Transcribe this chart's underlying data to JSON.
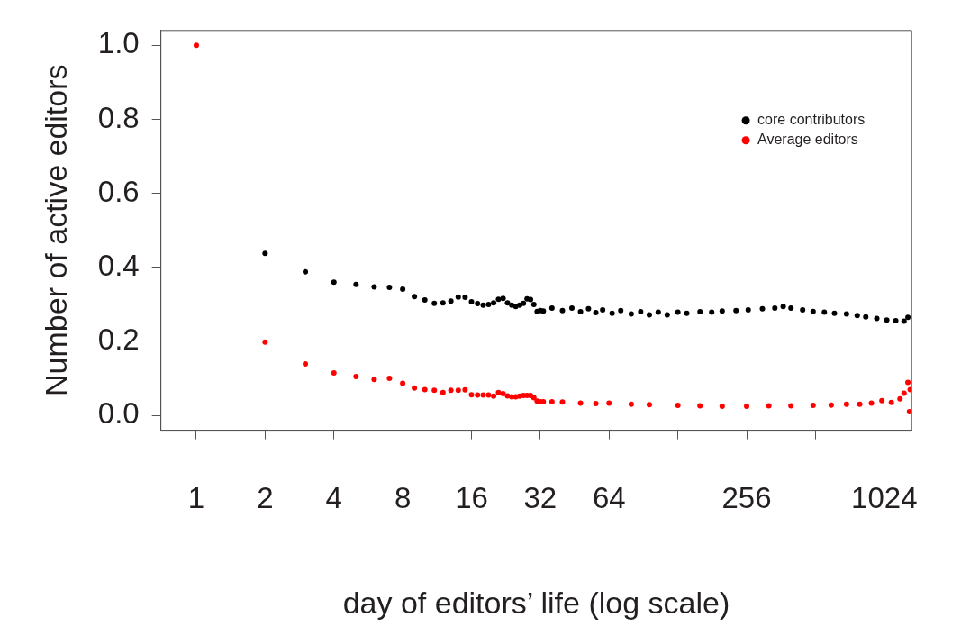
{
  "chart_data": {
    "type": "scatter",
    "xlabel": "day of editors’ life (log scale)",
    "ylabel": "Number of active editors",
    "log": "x",
    "xlim": [
      0.7,
      1350
    ],
    "ylim": [
      -0.04,
      1.04
    ],
    "xticks": [
      1,
      2,
      4,
      8,
      16,
      32,
      64,
      {
        "value": 128,
        "label": null
      },
      256,
      {
        "value": 512,
        "label": null
      },
      1024
    ],
    "yticks": [
      {
        "value": 0,
        "label": "0.0"
      },
      0.2,
      0.4,
      0.6,
      0.8,
      {
        "value": 1,
        "label": "1.0"
      }
    ],
    "grid": false,
    "legend": "top right",
    "marker": "circle",
    "series": [
      {
        "name": "core contributors",
        "color": "#000000",
        "x": [
          2,
          3,
          4,
          5,
          6,
          7,
          8,
          9,
          10,
          11,
          12,
          13,
          14,
          15,
          16,
          17,
          18,
          19,
          20,
          21,
          22,
          23,
          24,
          25,
          26,
          27,
          28,
          29,
          30,
          31,
          32,
          33,
          36,
          40,
          44,
          48,
          52,
          56,
          60,
          66,
          72,
          80,
          88,
          96,
          105,
          115,
          128,
          140,
          160,
          180,
          200,
          230,
          260,
          300,
          340,
          370,
          400,
          450,
          500,
          560,
          620,
          700,
          780,
          850,
          950,
          1050,
          1150,
          1250,
          1300
        ],
        "values": [
          0.438,
          0.388,
          0.36,
          0.354,
          0.347,
          0.346,
          0.341,
          0.321,
          0.312,
          0.303,
          0.304,
          0.309,
          0.32,
          0.319,
          0.307,
          0.302,
          0.298,
          0.3,
          0.304,
          0.314,
          0.316,
          0.304,
          0.298,
          0.294,
          0.298,
          0.303,
          0.315,
          0.313,
          0.3,
          0.281,
          0.283,
          0.282,
          0.29,
          0.283,
          0.29,
          0.28,
          0.288,
          0.278,
          0.285,
          0.276,
          0.283,
          0.274,
          0.28,
          0.272,
          0.279,
          0.272,
          0.279,
          0.276,
          0.28,
          0.279,
          0.282,
          0.283,
          0.285,
          0.288,
          0.29,
          0.294,
          0.29,
          0.285,
          0.281,
          0.279,
          0.276,
          0.274,
          0.27,
          0.266,
          0.262,
          0.258,
          0.256,
          0.255,
          0.265
        ]
      },
      {
        "name": "Average editors",
        "color": "#ff0000",
        "x": [
          1,
          2,
          3,
          4,
          5,
          6,
          7,
          8,
          9,
          10,
          11,
          12,
          13,
          14,
          15,
          16,
          17,
          18,
          19,
          20,
          21,
          22,
          23,
          24,
          25,
          26,
          27,
          28,
          29,
          30,
          31,
          32,
          33,
          36,
          40,
          48,
          56,
          64,
          80,
          96,
          128,
          160,
          200,
          256,
          320,
          400,
          500,
          600,
          700,
          800,
          900,
          1000,
          1100,
          1200,
          1250,
          1300,
          1320,
          1330
        ],
        "values": [
          1,
          0.198,
          0.139,
          0.115,
          0.105,
          0.097,
          0.1,
          0.087,
          0.074,
          0.07,
          0.068,
          0.062,
          0.068,
          0.068,
          0.069,
          0.056,
          0.055,
          0.055,
          0.055,
          0.052,
          0.062,
          0.059,
          0.053,
          0.05,
          0.05,
          0.052,
          0.054,
          0.054,
          0.054,
          0.048,
          0.039,
          0.037,
          0.037,
          0.037,
          0.036,
          0.033,
          0.032,
          0.033,
          0.03,
          0.029,
          0.027,
          0.026,
          0.025,
          0.025,
          0.026,
          0.026,
          0.027,
          0.028,
          0.03,
          0.03,
          0.033,
          0.04,
          0.035,
          0.045,
          0.06,
          0.089,
          0.01,
          0.07
        ]
      }
    ]
  }
}
